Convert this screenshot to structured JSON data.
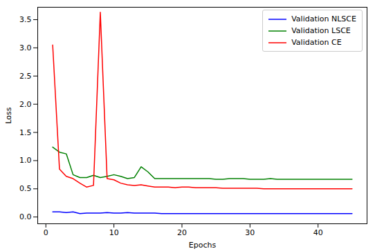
{
  "chart_data": {
    "type": "line",
    "x_label": "Epochs",
    "y_label": "Loss",
    "x": [
      1,
      2,
      3,
      4,
      5,
      6,
      7,
      8,
      9,
      10,
      11,
      12,
      13,
      14,
      15,
      16,
      17,
      18,
      19,
      20,
      21,
      22,
      23,
      24,
      25,
      26,
      27,
      28,
      29,
      30,
      31,
      32,
      33,
      34,
      35,
      36,
      37,
      38,
      39,
      40,
      41,
      42,
      43,
      44,
      45
    ],
    "series": [
      {
        "name": "Validation NLSCE",
        "color": "#0000ff",
        "values": [
          0.09,
          0.09,
          0.08,
          0.09,
          0.06,
          0.07,
          0.07,
          0.07,
          0.08,
          0.07,
          0.07,
          0.08,
          0.07,
          0.07,
          0.07,
          0.07,
          0.06,
          0.06,
          0.06,
          0.06,
          0.06,
          0.06,
          0.06,
          0.06,
          0.06,
          0.06,
          0.06,
          0.06,
          0.06,
          0.06,
          0.06,
          0.06,
          0.06,
          0.06,
          0.06,
          0.06,
          0.06,
          0.06,
          0.06,
          0.06,
          0.06,
          0.06,
          0.06,
          0.06,
          0.06
        ]
      },
      {
        "name": "Validation LSCE",
        "color": "#008000",
        "values": [
          1.24,
          1.15,
          1.12,
          0.75,
          0.7,
          0.7,
          0.74,
          0.7,
          0.72,
          0.75,
          0.72,
          0.68,
          0.7,
          0.89,
          0.8,
          0.68,
          0.68,
          0.68,
          0.68,
          0.68,
          0.68,
          0.68,
          0.68,
          0.68,
          0.67,
          0.67,
          0.68,
          0.68,
          0.68,
          0.67,
          0.67,
          0.67,
          0.68,
          0.67,
          0.67,
          0.67,
          0.67,
          0.67,
          0.67,
          0.67,
          0.67,
          0.67,
          0.67,
          0.67,
          0.67
        ]
      },
      {
        "name": "Validation CE",
        "color": "#ff0000",
        "values": [
          3.05,
          0.85,
          0.72,
          0.68,
          0.6,
          0.53,
          0.56,
          3.63,
          0.68,
          0.66,
          0.6,
          0.57,
          0.56,
          0.57,
          0.55,
          0.53,
          0.53,
          0.53,
          0.52,
          0.53,
          0.53,
          0.52,
          0.52,
          0.52,
          0.52,
          0.51,
          0.51,
          0.51,
          0.51,
          0.51,
          0.51,
          0.5,
          0.5,
          0.5,
          0.5,
          0.5,
          0.5,
          0.5,
          0.5,
          0.5,
          0.5,
          0.5,
          0.5,
          0.5,
          0.5
        ]
      }
    ],
    "xlim": [
      -1.2,
      47.2
    ],
    "xticks": [
      0,
      10,
      20,
      30,
      40
    ],
    "ylim": [
      -0.12,
      3.72
    ],
    "yticks": [
      {
        "value": 0,
        "label": "0.0"
      },
      0.5,
      {
        "value": 1,
        "label": "1.0"
      },
      1.5,
      {
        "value": 2,
        "label": "2.0"
      },
      2.5,
      {
        "value": 3,
        "label": "3.0"
      },
      3.5
    ],
    "grid": false,
    "legend": "upper right"
  }
}
